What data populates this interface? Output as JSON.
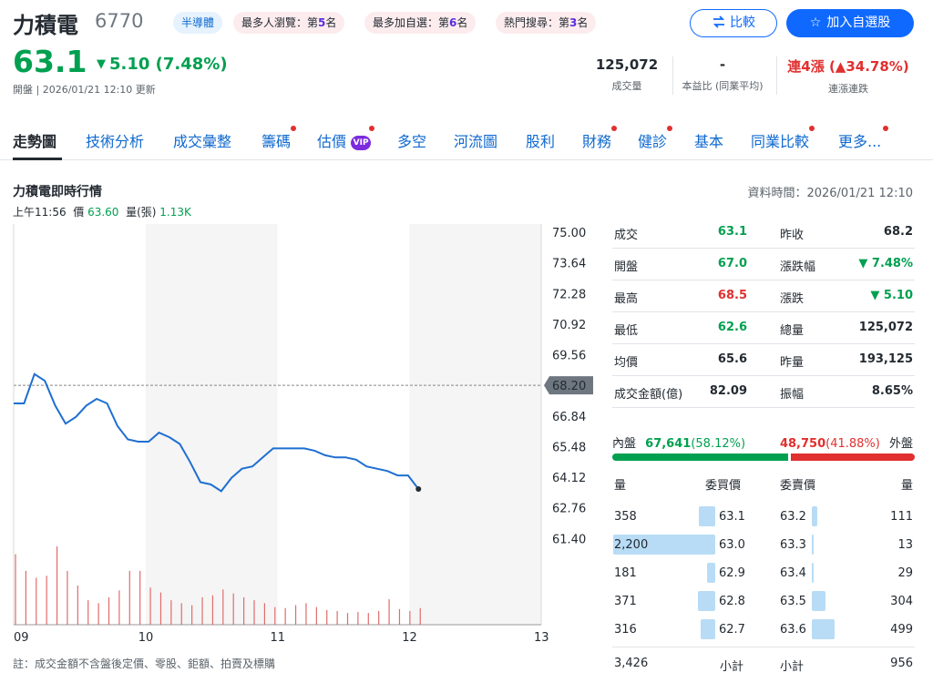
{
  "header": {
    "name": "力積電",
    "code": "6770",
    "industry_tag": "半導體",
    "rank_tags": [
      {
        "text": "最多人瀏覽：第",
        "rank": "5",
        "suffix": "名"
      },
      {
        "text": "最多加自選：第",
        "rank": "6",
        "suffix": "名"
      },
      {
        "text": "熱門搜尋：第",
        "rank": "3",
        "suffix": "名"
      }
    ],
    "compare_label": "比較",
    "watchlist_label": "加入自選股",
    "price": "63.1",
    "change": "5.10 (7.48%)",
    "change_arrow": "▼",
    "open_note": "開盤 | 2026/01/21 12:10 更新",
    "stats": [
      {
        "value": "125,072",
        "label": "成交量"
      },
      {
        "value": "-",
        "label": "本益比 (同業平均)"
      },
      {
        "value": "連4漲 (▲34.78%)",
        "label": "連漲連跌"
      }
    ]
  },
  "tabs": [
    {
      "label": "走勢圖",
      "dot": false
    },
    {
      "label": "技術分析",
      "dot": false
    },
    {
      "label": "成交彙整",
      "dot": false
    },
    {
      "label": "籌碼",
      "dot": true
    },
    {
      "label": "估價",
      "dot": true,
      "badge": "VIP"
    },
    {
      "label": "多空",
      "dot": false
    },
    {
      "label": "河流圖",
      "dot": false
    },
    {
      "label": "股利",
      "dot": false
    },
    {
      "label": "財務",
      "dot": true
    },
    {
      "label": "健診",
      "dot": true
    },
    {
      "label": "基本",
      "dot": false
    },
    {
      "label": "同業比較",
      "dot": true
    },
    {
      "label": "更多...",
      "dot": true
    }
  ],
  "section": {
    "title": "力積電即時行情",
    "data_time": "資料時間：2026/01/21 12:10",
    "hover": {
      "time": "上午11:56",
      "price_label": "價",
      "price": "63.60",
      "volume_label": "量(張)",
      "volume": "1.13K"
    }
  },
  "chart_data": {
    "type": "line",
    "x_ticks": [
      "09",
      "10",
      "11",
      "12",
      "13"
    ],
    "y_ticks": [
      "75.00",
      "73.64",
      "72.28",
      "70.92",
      "69.56",
      "68.20",
      "66.84",
      "65.48",
      "64.12",
      "62.76",
      "61.40"
    ],
    "ylim": [
      61.4,
      75.0
    ],
    "reference_price": "68.20",
    "series": [
      {
        "values": [
          67.4,
          67.4,
          68.7,
          68.4,
          67.3,
          66.5,
          66.8,
          67.3,
          67.6,
          67.4,
          66.4,
          65.8,
          65.7,
          65.7,
          66.1,
          65.9,
          65.6,
          64.8,
          63.9,
          63.8,
          63.5,
          64.1,
          64.5,
          64.6,
          65.0,
          65.4,
          65.4,
          65.4,
          65.4,
          65.3,
          65.1,
          65.0,
          65.0,
          64.9,
          64.6,
          64.5,
          64.4,
          64.2,
          64.2
        ],
        "end_point": 63.6
      }
    ],
    "volume": [
      72,
      55,
      48,
      50,
      80,
      55,
      40,
      25,
      22,
      28,
      35,
      55,
      55,
      38,
      33,
      25,
      22,
      20,
      28,
      30,
      36,
      32,
      28,
      25,
      22,
      18,
      17,
      20,
      22,
      18,
      15,
      14,
      12,
      13,
      12,
      14,
      26,
      16,
      14,
      17
    ]
  },
  "quote": [
    {
      "l1": "成交",
      "v1": "63.1",
      "c1": "green",
      "l2": "昨收",
      "v2": "68.2",
      "c2": ""
    },
    {
      "l1": "開盤",
      "v1": "67.0",
      "c1": "green",
      "l2": "漲跌幅",
      "v2": "▼ 7.48%",
      "c2": "green"
    },
    {
      "l1": "最高",
      "v1": "68.5",
      "c1": "red",
      "l2": "漲跌",
      "v2": "▼ 5.10",
      "c2": "green"
    },
    {
      "l1": "最低",
      "v1": "62.6",
      "c1": "green",
      "l2": "總量",
      "v2": "125,072",
      "c2": ""
    },
    {
      "l1": "均價",
      "v1": "65.6",
      "c1": "",
      "l2": "昨量",
      "v2": "193,125",
      "c2": ""
    },
    {
      "l1": "成交金額(億)",
      "v1": "82.09",
      "c1": "",
      "l2": "振幅",
      "v2": "8.65%",
      "c2": ""
    }
  ],
  "order_ratio": {
    "inner_label": "內盤",
    "inner_value": "67,641",
    "inner_pct": "(58.12%)",
    "inner_fraction": 0.5812,
    "outer_value": "48,750",
    "outer_pct": "(41.88%)",
    "outer_label": "外盤"
  },
  "orderbook": {
    "headers": [
      "量",
      "委買價",
      "委賣價",
      "量"
    ],
    "bids": [
      {
        "qty": "358",
        "price": "63.1",
        "size": 358
      },
      {
        "qty": "2,200",
        "price": "63.0",
        "size": 2200
      },
      {
        "qty": "181",
        "price": "62.9",
        "size": 181
      },
      {
        "qty": "371",
        "price": "62.8",
        "size": 371
      },
      {
        "qty": "316",
        "price": "62.7",
        "size": 316
      }
    ],
    "asks": [
      {
        "price": "63.2",
        "qty": "111",
        "size": 111
      },
      {
        "price": "63.3",
        "qty": "13",
        "size": 13
      },
      {
        "price": "63.4",
        "qty": "29",
        "size": 29
      },
      {
        "price": "63.5",
        "qty": "304",
        "size": 304
      },
      {
        "price": "63.6",
        "qty": "499",
        "size": 499
      }
    ],
    "bid_total": "3,426",
    "bid_total_label": "小計",
    "ask_total_label": "小計",
    "ask_total": "956"
  },
  "note": "註：成交金額不含盤後定價、零股、鉅額、拍賣及標購"
}
